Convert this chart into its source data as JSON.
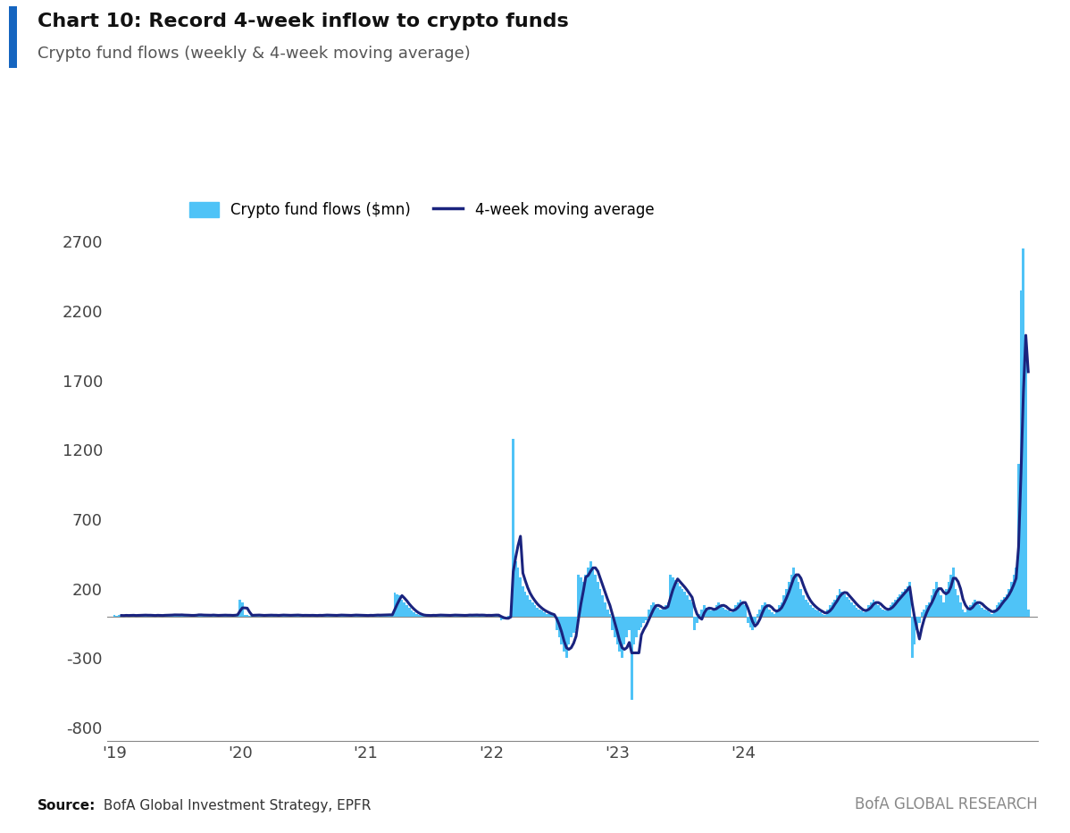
{
  "title_bold": "Chart 10: Record 4-week inflow to crypto funds",
  "title_sub": "Crypto fund flows (weekly & 4-week moving average)",
  "source_bold": "Source:",
  "source_rest": " BofA Global Investment Strategy, EPFR",
  "branding": "BofA GLOBAL RESEARCH",
  "bar_color": "#4FC3F7",
  "line_color": "#1A237E",
  "background_color": "#FFFFFF",
  "ylim": [
    -900,
    3000
  ],
  "yticks": [
    -800,
    -300,
    200,
    700,
    1200,
    1700,
    2200,
    2700
  ],
  "legend_bar_label": "Crypto fund flows ($mn)",
  "legend_line_label": "4-week moving average",
  "accent_color": "#1565C0",
  "weekly_data": [
    10,
    5,
    8,
    5,
    8,
    10,
    5,
    8,
    10,
    5,
    8,
    10,
    12,
    8,
    5,
    10,
    8,
    5,
    10,
    8,
    5,
    10,
    12,
    8,
    10,
    15,
    10,
    8,
    12,
    10,
    8,
    5,
    8,
    10,
    12,
    15,
    8,
    5,
    10,
    12,
    8,
    10,
    5,
    8,
    10,
    12,
    8,
    5,
    10,
    8,
    12,
    15,
    120,
    100,
    10,
    8,
    5,
    10,
    12,
    8,
    10,
    5,
    8,
    10,
    12,
    8,
    5,
    10,
    8,
    12,
    10,
    8,
    5,
    10,
    12,
    8,
    10,
    5,
    8,
    10,
    8,
    5,
    10,
    8,
    5,
    10,
    8,
    12,
    10,
    8,
    5,
    10,
    8,
    12,
    10,
    8,
    5,
    10,
    8,
    12,
    10,
    8,
    5,
    10,
    8,
    5,
    10,
    8,
    12,
    10,
    8,
    10,
    15,
    10,
    12,
    8,
    170,
    160,
    150,
    120,
    100,
    80,
    60,
    40,
    30,
    20,
    10,
    8,
    5,
    10,
    8,
    5,
    10,
    8,
    12,
    10,
    8,
    5,
    10,
    8,
    12,
    10,
    8,
    5,
    10,
    8,
    10,
    12,
    8,
    10,
    12,
    8,
    10,
    8,
    5,
    10,
    8,
    12,
    10,
    8,
    -30,
    -20,
    -10,
    5,
    10,
    1280,
    400,
    350,
    280,
    220,
    180,
    150,
    120,
    100,
    80,
    60,
    50,
    40,
    30,
    20,
    15,
    10,
    8,
    -100,
    -150,
    -200,
    -250,
    -300,
    -200,
    -150,
    -120,
    -100,
    300,
    280,
    250,
    300,
    350,
    400,
    350,
    300,
    250,
    200,
    150,
    100,
    50,
    20,
    -100,
    -150,
    -200,
    -250,
    -300,
    -200,
    -150,
    -100,
    -600,
    -200,
    -150,
    -100,
    -80,
    -50,
    -30,
    50,
    80,
    100,
    80,
    60,
    50,
    50,
    80,
    100,
    300,
    280,
    260,
    240,
    220,
    200,
    180,
    150,
    120,
    100,
    -100,
    -50,
    20,
    50,
    80,
    60,
    50,
    40,
    50,
    80,
    100,
    80,
    60,
    50,
    40,
    30,
    50,
    80,
    100,
    120,
    100,
    80,
    -50,
    -80,
    -100,
    -50,
    20,
    50,
    80,
    100,
    80,
    50,
    30,
    20,
    50,
    80,
    100,
    150,
    200,
    250,
    300,
    350,
    300,
    250,
    200,
    150,
    120,
    100,
    80,
    60,
    50,
    40,
    30,
    20,
    10,
    50,
    80,
    100,
    120,
    150,
    200,
    180,
    160,
    140,
    120,
    100,
    80,
    60,
    50,
    40,
    30,
    50,
    80,
    100,
    120,
    100,
    80,
    60,
    50,
    40,
    50,
    80,
    100,
    120,
    140,
    160,
    180,
    200,
    220,
    250,
    -300,
    -200,
    -100,
    -50,
    30,
    50,
    80,
    100,
    150,
    200,
    250,
    200,
    150,
    100,
    200,
    250,
    300,
    350,
    200,
    150,
    100,
    50,
    30,
    50,
    80,
    100,
    120,
    100,
    80,
    60,
    50,
    40,
    30,
    20,
    50,
    80,
    100,
    120,
    140,
    160,
    200,
    250,
    300,
    350,
    1100,
    2350,
    2650,
    2000,
    50
  ],
  "x_tick_labels": [
    "'19",
    "'20",
    "'21",
    "'22",
    "'23",
    "'24"
  ],
  "n_weeks_per_year": 52
}
